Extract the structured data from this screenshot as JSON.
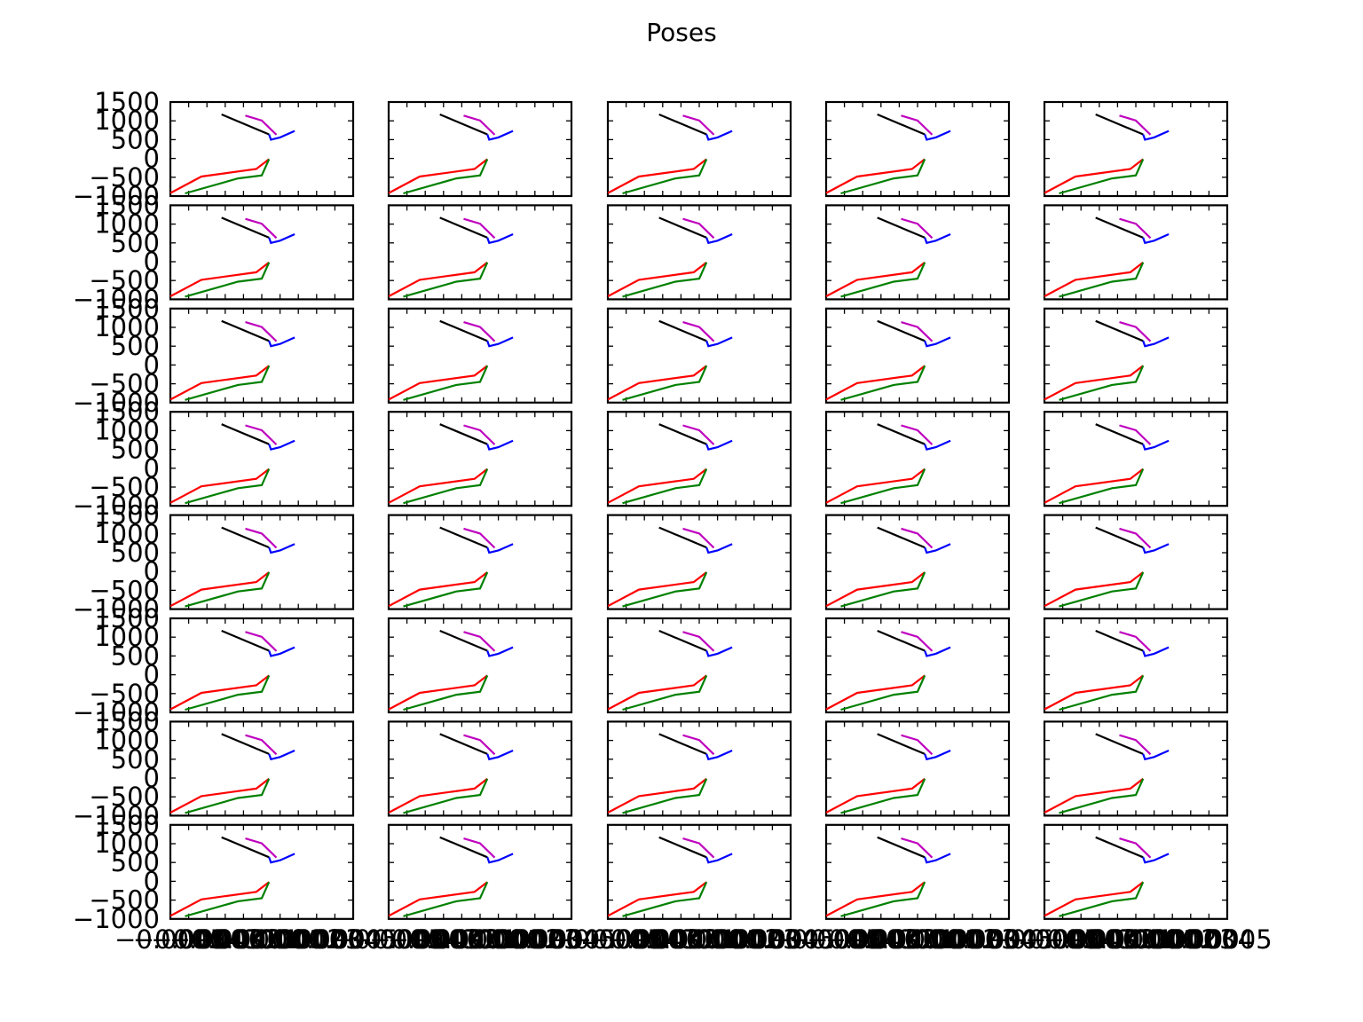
{
  "chart_data": {
    "type": "line",
    "title": "Poses",
    "grid": false,
    "rows": 8,
    "cols": 5,
    "sharey": true,
    "sharex": true,
    "xlim": [
      -0.0005,
      0.0005
    ],
    "ylim": [
      -1000,
      1500
    ],
    "ytick_labels": [
      "1500",
      "1000",
      "500",
      "0",
      "−500",
      "−1000"
    ],
    "ytick_values": [
      1500,
      1000,
      500,
      0,
      -500,
      -1000
    ],
    "xtick_labels_overlapped": [
      "−0.0005",
      "−0.0004",
      "−0.0003",
      "−0.0002",
      "−0.0001",
      "0.0000",
      "0.0001",
      "0.0002",
      "0.0003",
      "0.0004",
      "0.0005"
    ],
    "xtick_label_text_rendered": "−0.0005",
    "last_xtick_label": "0.0005",
    "series": [
      {
        "color": "#000000",
        "x": [
          -0.00022,
          4e-05
        ],
        "y": [
          1170,
          640
        ]
      },
      {
        "color": "#bf00bf",
        "x": [
          -9e-05,
          0.0,
          8e-05
        ],
        "y": [
          1140,
          1010,
          630
        ]
      },
      {
        "color": "#0000ff",
        "x": [
          4e-05,
          5e-05,
          0.0001,
          0.00018
        ],
        "y": [
          640,
          500,
          560,
          730
        ]
      },
      {
        "color": "#ff0000",
        "x": [
          4e-05,
          -3e-05,
          -0.00033,
          -0.0005
        ],
        "y": [
          -20,
          -280,
          -480,
          -920
        ]
      },
      {
        "color": "#008000",
        "x": [
          4e-05,
          0.0,
          -0.00013,
          -0.00042
        ],
        "y": [
          -20,
          -450,
          -530,
          -930
        ]
      }
    ]
  }
}
